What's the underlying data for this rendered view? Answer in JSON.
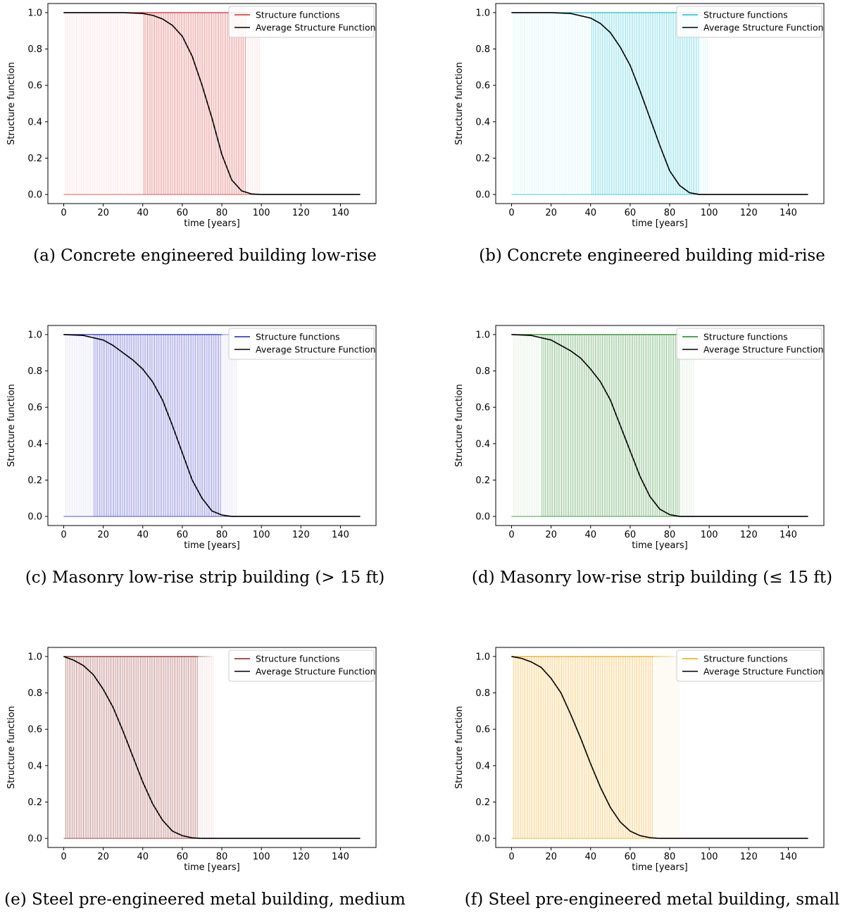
{
  "figure": {
    "common": {
      "xlabel": "time [years]",
      "ylabel": "Structure function",
      "xlim": [
        -8,
        158
      ],
      "ylim": [
        -0.05,
        1.05
      ],
      "xticks": [
        0,
        20,
        40,
        60,
        80,
        100,
        120,
        140
      ],
      "yticks": [
        0.0,
        0.2,
        0.4,
        0.6,
        0.8,
        1.0
      ],
      "grid": false,
      "legend_placement": "upper right",
      "average_color": "#000000"
    },
    "panels": [
      {
        "caption": "(a) Concrete engineered building low-rise",
        "color": "#d62728",
        "legend": [
          "Structure functions",
          "Average Structure Function"
        ]
      },
      {
        "caption": "(b) Concrete engineered building mid-rise",
        "color": "#17becf",
        "legend": [
          "Structure functions",
          "Average Structure Function"
        ]
      },
      {
        "caption": "(c) Masonry low-rise strip building (> 15 ft)",
        "color": "#1f1fbf",
        "legend": [
          "Structure functions",
          "Average Structure Function"
        ]
      },
      {
        "caption": "(d) Masonry low-rise strip building (≤ 15 ft)",
        "color": "#1a801a",
        "legend": [
          "Structure functions",
          "Average Structure Function"
        ]
      },
      {
        "caption": "(e) Steel pre-engineered metal building, medium",
        "color": "#8b1a1a",
        "legend": [
          "Structure functions",
          "Average Structure Function"
        ]
      },
      {
        "caption": "(f) Steel pre-engineered metal building, small",
        "color": "#f0a30a",
        "legend": [
          "Structure functions",
          "Average Structure Function"
        ]
      }
    ]
  },
  "chart_data": [
    {
      "type": "line",
      "xlabel": "time [years]",
      "ylabel": "Structure function",
      "xlim": [
        -8,
        158
      ],
      "ylim": [
        -0.05,
        1.05
      ],
      "series": [
        {
          "name": "Structure functions",
          "kind": "step-failure times",
          "failure_range": [
            1,
            100
          ],
          "dense_range": [
            40,
            92
          ],
          "color": "#d62728"
        },
        {
          "name": "Average Structure Function",
          "color": "#000000",
          "x": [
            0,
            20,
            30,
            40,
            45,
            50,
            55,
            60,
            65,
            70,
            75,
            80,
            85,
            90,
            95,
            100,
            150
          ],
          "y": [
            1.0,
            1.0,
            1.0,
            0.995,
            0.985,
            0.965,
            0.93,
            0.87,
            0.76,
            0.6,
            0.42,
            0.22,
            0.08,
            0.02,
            0.003,
            0.0,
            0.0
          ]
        }
      ]
    },
    {
      "type": "line",
      "xlabel": "time [years]",
      "ylabel": "Structure function",
      "xlim": [
        -8,
        158
      ],
      "ylim": [
        -0.05,
        1.05
      ],
      "series": [
        {
          "name": "Structure functions",
          "kind": "step-failure times",
          "failure_range": [
            1,
            100
          ],
          "dense_range": [
            40,
            95
          ],
          "color": "#17becf"
        },
        {
          "name": "Average Structure Function",
          "color": "#000000",
          "x": [
            0,
            20,
            30,
            40,
            45,
            50,
            55,
            60,
            65,
            70,
            75,
            80,
            85,
            90,
            95,
            100,
            150
          ],
          "y": [
            1.0,
            1.0,
            0.995,
            0.97,
            0.94,
            0.89,
            0.81,
            0.71,
            0.57,
            0.42,
            0.27,
            0.13,
            0.05,
            0.01,
            0.0,
            0.0,
            0.0
          ]
        }
      ]
    },
    {
      "type": "line",
      "xlabel": "time [years]",
      "ylabel": "Structure function",
      "xlim": [
        -8,
        158
      ],
      "ylim": [
        -0.05,
        1.05
      ],
      "series": [
        {
          "name": "Structure functions",
          "kind": "step-failure times",
          "failure_range": [
            1,
            88
          ],
          "dense_range": [
            15,
            80
          ],
          "color": "#1f1fbf"
        },
        {
          "name": "Average Structure Function",
          "color": "#000000",
          "x": [
            0,
            10,
            20,
            25,
            30,
            35,
            40,
            45,
            50,
            55,
            60,
            65,
            70,
            75,
            80,
            85,
            90,
            150
          ],
          "y": [
            1.0,
            0.995,
            0.97,
            0.94,
            0.9,
            0.86,
            0.81,
            0.74,
            0.64,
            0.5,
            0.35,
            0.2,
            0.1,
            0.03,
            0.008,
            0.0,
            0.0,
            0.0
          ]
        }
      ]
    },
    {
      "type": "line",
      "xlabel": "time [years]",
      "ylabel": "Structure function",
      "xlim": [
        -8,
        158
      ],
      "ylim": [
        -0.05,
        1.05
      ],
      "series": [
        {
          "name": "Structure functions",
          "kind": "step-failure times",
          "failure_range": [
            1,
            92
          ],
          "dense_range": [
            15,
            85
          ],
          "color": "#1a801a"
        },
        {
          "name": "Average Structure Function",
          "color": "#000000",
          "x": [
            0,
            10,
            20,
            25,
            30,
            35,
            40,
            45,
            50,
            55,
            60,
            65,
            70,
            75,
            80,
            85,
            90,
            150
          ],
          "y": [
            1.0,
            0.995,
            0.97,
            0.94,
            0.91,
            0.87,
            0.81,
            0.74,
            0.64,
            0.5,
            0.36,
            0.22,
            0.11,
            0.04,
            0.01,
            0.0,
            0.0,
            0.0
          ]
        }
      ]
    },
    {
      "type": "line",
      "xlabel": "time [years]",
      "ylabel": "Structure function",
      "xlim": [
        -8,
        158
      ],
      "ylim": [
        -0.05,
        1.05
      ],
      "series": [
        {
          "name": "Structure functions",
          "kind": "step-failure times",
          "failure_range": [
            1,
            76
          ],
          "dense_range": [
            1,
            68
          ],
          "color": "#8b1a1a"
        },
        {
          "name": "Average Structure Function",
          "color": "#000000",
          "x": [
            0,
            5,
            10,
            15,
            20,
            25,
            30,
            35,
            40,
            45,
            50,
            55,
            60,
            65,
            70,
            80,
            150
          ],
          "y": [
            1.0,
            0.98,
            0.95,
            0.9,
            0.82,
            0.72,
            0.59,
            0.45,
            0.31,
            0.19,
            0.1,
            0.04,
            0.015,
            0.003,
            0.0,
            0.0,
            0.0
          ]
        }
      ]
    },
    {
      "type": "line",
      "xlabel": "time [years]",
      "ylabel": "Structure function",
      "xlim": [
        -8,
        158
      ],
      "ylim": [
        -0.05,
        1.05
      ],
      "series": [
        {
          "name": "Structure functions",
          "kind": "step-failure times",
          "failure_range": [
            1,
            85
          ],
          "dense_range": [
            1,
            72
          ],
          "color": "#f0a30a"
        },
        {
          "name": "Average Structure Function",
          "color": "#000000",
          "x": [
            0,
            5,
            10,
            15,
            20,
            25,
            30,
            35,
            40,
            45,
            50,
            55,
            60,
            65,
            70,
            75,
            80,
            150
          ],
          "y": [
            1.0,
            0.99,
            0.97,
            0.94,
            0.88,
            0.8,
            0.68,
            0.55,
            0.41,
            0.28,
            0.17,
            0.09,
            0.04,
            0.015,
            0.004,
            0.0,
            0.0,
            0.0
          ]
        }
      ]
    }
  ]
}
